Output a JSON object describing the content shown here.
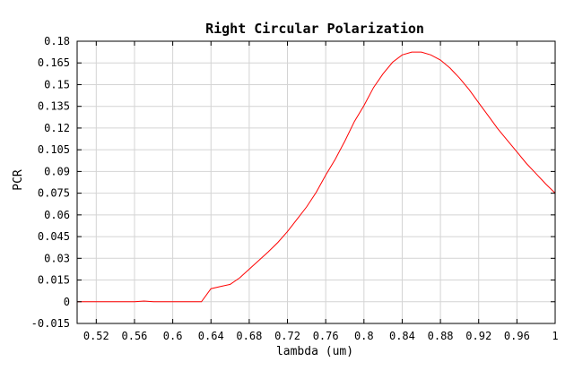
{
  "chart_data": {
    "type": "line",
    "title": "Right Circular Polarization",
    "xlabel": "lambda (um)",
    "ylabel": "PCR",
    "xlim": [
      0.5,
      1.0
    ],
    "ylim": [
      -0.015,
      0.18
    ],
    "xticks": [
      0.52,
      0.56,
      0.6,
      0.64,
      0.68,
      0.72,
      0.76,
      0.8,
      0.84,
      0.88,
      0.92,
      0.96,
      1.0
    ],
    "xtick_labels": [
      "0.52",
      "0.56",
      "0.6",
      "0.64",
      "0.68",
      "0.72",
      "0.76",
      "0.8",
      "0.84",
      "0.88",
      "0.92",
      "0.96",
      "1"
    ],
    "yticks": [
      -0.015,
      0,
      0.015,
      0.03,
      0.045,
      0.06,
      0.075,
      0.09,
      0.105,
      0.12,
      0.135,
      0.15,
      0.165,
      0.18
    ],
    "ytick_labels": [
      "-0.015",
      "0",
      "0.015",
      "0.03",
      "0.045",
      "0.06",
      "0.075",
      "0.09",
      "0.105",
      "0.12",
      "0.135",
      "0.15",
      "0.165",
      "0.18"
    ],
    "grid": true,
    "series": [
      {
        "color": "#ff0000",
        "x": [
          0.5,
          0.52,
          0.54,
          0.56,
          0.57,
          0.58,
          0.6,
          0.62,
          0.63,
          0.64,
          0.65,
          0.66,
          0.67,
          0.68,
          0.69,
          0.7,
          0.71,
          0.72,
          0.73,
          0.74,
          0.75,
          0.76,
          0.77,
          0.78,
          0.79,
          0.8,
          0.81,
          0.82,
          0.83,
          0.84,
          0.85,
          0.86,
          0.87,
          0.88,
          0.89,
          0.9,
          0.91,
          0.92,
          0.93,
          0.94,
          0.95,
          0.96,
          0.97,
          0.98,
          0.99,
          1.0
        ],
        "y": [
          0,
          0,
          0,
          0,
          0.0005,
          0,
          0,
          0,
          0,
          0.009,
          0.0105,
          0.012,
          0.0165,
          0.0225,
          0.0285,
          0.0345,
          0.041,
          0.0485,
          0.057,
          0.0655,
          0.0755,
          0.0875,
          0.0985,
          0.111,
          0.1245,
          0.1355,
          0.148,
          0.1575,
          0.1655,
          0.1705,
          0.1725,
          0.1725,
          0.1705,
          0.167,
          0.1615,
          0.1545,
          0.1465,
          0.1375,
          0.1285,
          0.1195,
          0.1115,
          0.1035,
          0.0955,
          0.0885,
          0.0815,
          0.075
        ]
      }
    ]
  }
}
